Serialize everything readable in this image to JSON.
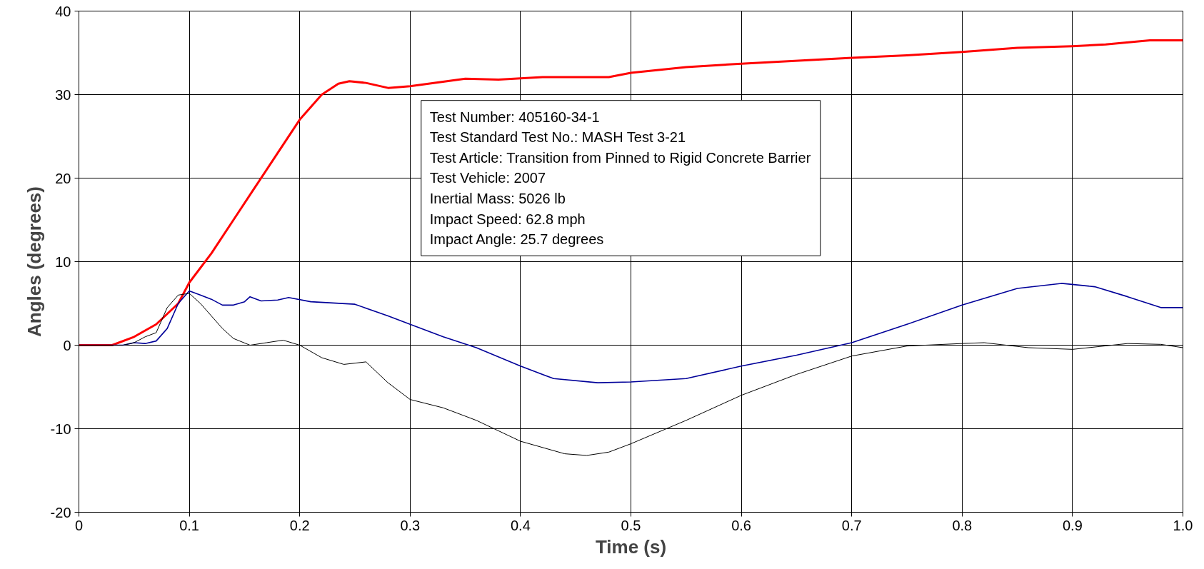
{
  "chart_data": {
    "type": "line",
    "xlabel": "Time (s)",
    "ylabel": "Angles (degrees)",
    "xlim": [
      0,
      1.0
    ],
    "xticks": [
      0,
      0.1,
      0.2,
      0.3,
      0.4,
      0.5,
      0.6,
      0.7,
      0.8,
      0.9,
      {
        "value": 1.0,
        "label": "1.0"
      }
    ],
    "ylim": [
      -20,
      40
    ],
    "yticks": [
      -20,
      -10,
      0,
      10,
      20,
      30,
      40
    ],
    "grid": true,
    "marker": "none",
    "line_style": "solid",
    "annotations": [
      "Test Number: 405160-34-1",
      "Test Standard Test No.: MASH Test 3-21",
      "Test Article: Transition from Pinned to Rigid Concrete Barrier",
      "Test Vehicle: 2007",
      "Inertial Mass: 5026 lb",
      "Impact Speed: 62.8 mph",
      "Impact Angle: 25.7 degrees"
    ],
    "series": [
      {
        "color": "#ff0000",
        "x": [
          0,
          0.03,
          0.05,
          0.07,
          0.09,
          0.1,
          0.12,
          0.14,
          0.16,
          0.18,
          0.2,
          0.22,
          0.235,
          0.245,
          0.26,
          0.28,
          0.3,
          0.35,
          0.38,
          0.42,
          0.48,
          0.5,
          0.55,
          0.6,
          0.7,
          0.75,
          0.8,
          0.85,
          0.9,
          0.93,
          0.97,
          1.0
        ],
        "values": [
          0,
          0,
          1,
          2.5,
          5,
          7.5,
          11,
          15,
          19,
          23,
          27,
          30,
          31.3,
          31.6,
          31.4,
          30.8,
          31,
          31.9,
          31.8,
          32.1,
          32.1,
          32.6,
          33.3,
          33.7,
          34.4,
          34.7,
          35.1,
          35.6,
          35.8,
          36,
          36.5,
          36.5
        ]
      },
      {
        "color": "#000099",
        "x": [
          0,
          0.04,
          0.05,
          0.06,
          0.07,
          0.08,
          0.09,
          0.1,
          0.11,
          0.12,
          0.13,
          0.14,
          0.15,
          0.155,
          0.165,
          0.18,
          0.19,
          0.21,
          0.25,
          0.28,
          0.3,
          0.33,
          0.36,
          0.4,
          0.43,
          0.47,
          0.5,
          0.55,
          0.6,
          0.65,
          0.7,
          0.75,
          0.8,
          0.85,
          0.89,
          0.92,
          0.95,
          0.98,
          1.0
        ],
        "values": [
          0,
          0,
          0.3,
          0.2,
          0.5,
          2,
          5,
          6.5,
          6,
          5.5,
          4.8,
          4.8,
          5.2,
          5.8,
          5.3,
          5.4,
          5.7,
          5.2,
          4.9,
          3.5,
          2.5,
          1,
          -0.3,
          -2.5,
          -4,
          -4.5,
          -4.4,
          -4,
          -2.5,
          -1.2,
          0.3,
          2.5,
          4.8,
          6.8,
          7.4,
          7,
          5.8,
          4.5,
          4.5
        ]
      },
      {
        "color": "#000000",
        "x": [
          0,
          0.04,
          0.05,
          0.06,
          0.07,
          0.08,
          0.09,
          0.1,
          0.11,
          0.13,
          0.14,
          0.155,
          0.17,
          0.185,
          0.2,
          0.22,
          0.24,
          0.26,
          0.28,
          0.3,
          0.33,
          0.36,
          0.4,
          0.44,
          0.46,
          0.48,
          0.5,
          0.55,
          0.6,
          0.65,
          0.7,
          0.75,
          0.8,
          0.82,
          0.86,
          0.9,
          0.95,
          0.98,
          1.0
        ],
        "values": [
          0,
          0,
          0.3,
          1,
          1.5,
          4.5,
          6,
          6.2,
          5,
          2,
          0.8,
          0,
          0.3,
          0.6,
          0,
          -1.5,
          -2.3,
          -2,
          -4.5,
          -6.5,
          -7.5,
          -9,
          -11.5,
          -13,
          -13.2,
          -12.8,
          -11.8,
          -9,
          -6,
          -3.5,
          -1.3,
          -0.1,
          0.2,
          0.3,
          -0.3,
          -0.5,
          0.2,
          0.1,
          -0.3
        ]
      }
    ]
  }
}
